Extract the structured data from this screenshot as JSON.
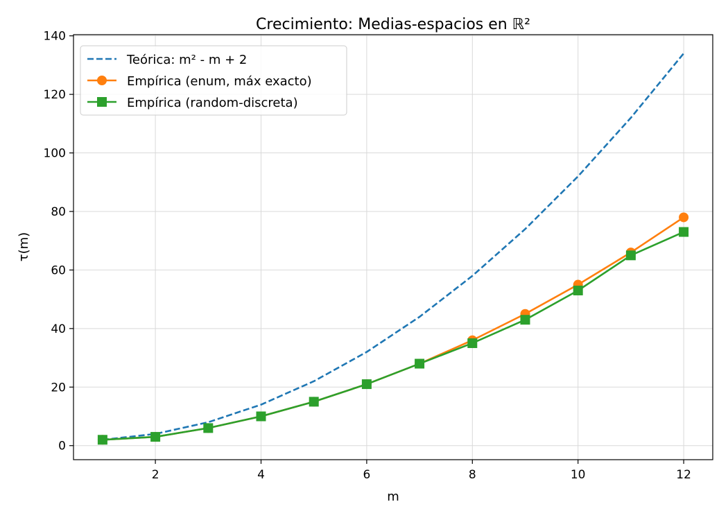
{
  "chart_data": {
    "type": "line",
    "title": "Crecimiento: Medias-espacios en ℝ²",
    "xlabel": "m",
    "ylabel": "τ(m)",
    "xlim": [
      0.45,
      12.55
    ],
    "ylim": [
      -4.8,
      140.4
    ],
    "xticks": [
      2,
      4,
      6,
      8,
      10,
      12
    ],
    "yticks": [
      0,
      20,
      40,
      60,
      80,
      100,
      120,
      140
    ],
    "grid": true,
    "legend_position": "top-left",
    "x": [
      1,
      2,
      3,
      4,
      5,
      6,
      7,
      8,
      9,
      10,
      11,
      12
    ],
    "series": [
      {
        "name": "Teórica: m² - m + 2",
        "values": [
          2,
          4,
          8,
          14,
          22,
          32,
          44,
          58,
          74,
          92,
          112,
          134
        ],
        "color": "#1f77b4",
        "style": "dashed",
        "marker": "none"
      },
      {
        "name": "Empírica (enum, máx exacto)",
        "values": [
          2,
          3,
          6,
          10,
          15,
          21,
          28,
          36,
          45,
          55,
          66,
          78
        ],
        "color": "#ff7f0e",
        "style": "solid",
        "marker": "circle"
      },
      {
        "name": "Empírica (random-discreta)",
        "values": [
          2,
          3,
          6,
          10,
          15,
          21,
          28,
          35,
          43,
          53,
          65,
          73
        ],
        "color": "#2ca02c",
        "style": "solid",
        "marker": "square"
      }
    ]
  }
}
